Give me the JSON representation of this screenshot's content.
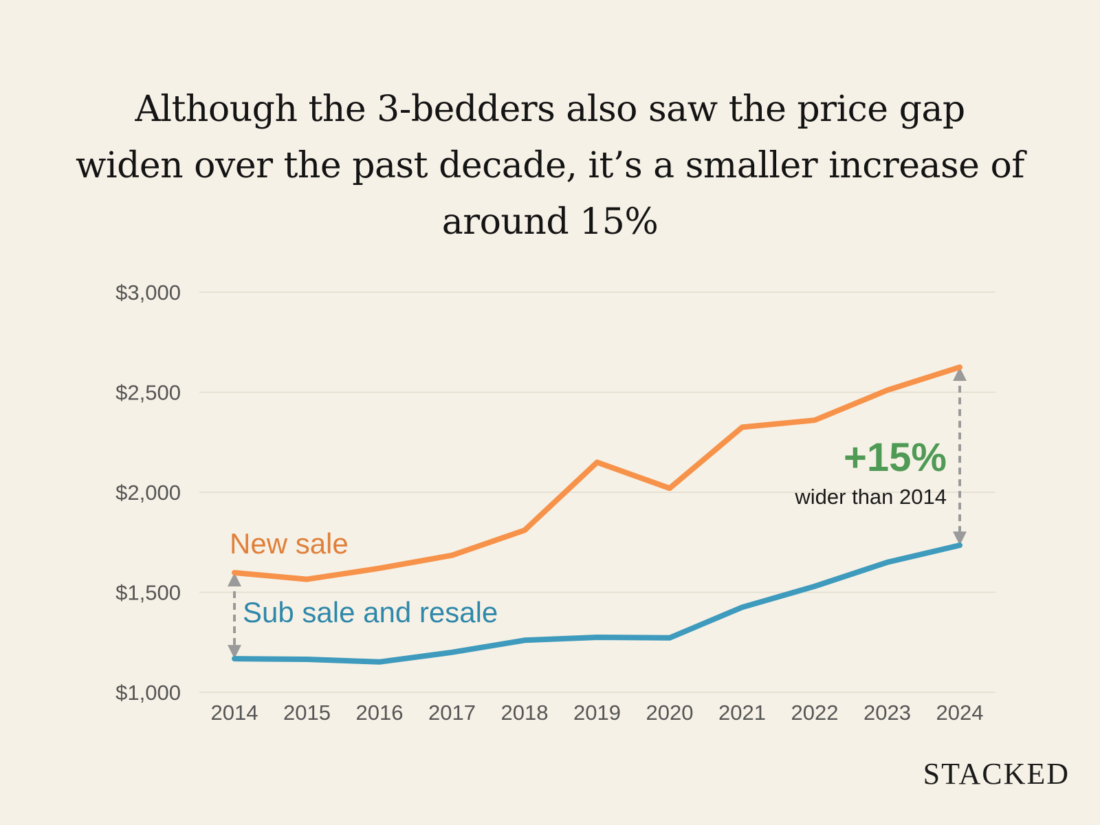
{
  "chart_data": {
    "type": "line",
    "title_lines": [
      "Although the 3-bedders also saw the price gap",
      "widen over the past decade, it’s a smaller increase of",
      "around 15%"
    ],
    "x": [
      "2014",
      "2015",
      "2016",
      "2017",
      "2018",
      "2019",
      "2020",
      "2021",
      "2022",
      "2023",
      "2024"
    ],
    "series": [
      {
        "name": "New sale",
        "color": "#f7924a",
        "label_color": "#e07f3a",
        "values": [
          1598,
          1565,
          1620,
          1685,
          1810,
          2150,
          2020,
          2325,
          2360,
          2510,
          2625
        ]
      },
      {
        "name": "Sub sale and resale",
        "color": "#3e9bbd",
        "label_color": "#2f88aa",
        "values": [
          1168,
          1165,
          1152,
          1200,
          1260,
          1275,
          1272,
          1425,
          1530,
          1650,
          1735
        ]
      }
    ],
    "ylim": [
      1000,
      3000
    ],
    "yticks": [
      1000,
      1500,
      2000,
      2500,
      3000
    ],
    "ytick_labels": [
      "$1,000",
      "$1,500",
      "$2,000",
      "$2,500",
      "$3,000"
    ],
    "grid": true,
    "xlabel": "",
    "ylabel": "",
    "annotations": {
      "highlight": "+15%",
      "highlight_color": "#4f9a55",
      "subtext": "wider than 2014",
      "gap_marker_color": "#9a9a9a"
    }
  },
  "brand": "STACKED"
}
